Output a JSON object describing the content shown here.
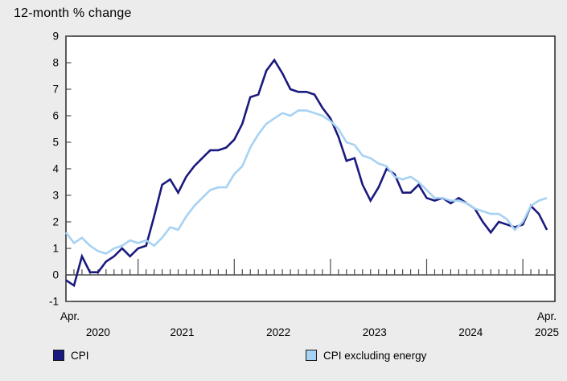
{
  "title": "12-month % change",
  "colors": {
    "background": "#ececec",
    "plot_background": "#ffffff",
    "plot_border": "#262626",
    "axis": "#4c4c4c",
    "cpi_line": "#1a1a7e",
    "cpi_ex_energy_line": "#a6d2f4"
  },
  "legend": {
    "items": [
      {
        "label": "CPI",
        "color": "#1a1a7e"
      },
      {
        "label": "CPI excluding energy",
        "color": "#a6d2f4"
      }
    ]
  },
  "chart_data": {
    "type": "line",
    "title": "12-month % change",
    "x_start_label": "Apr.",
    "x_end_label": "Apr.",
    "year_labels": [
      "2020",
      "2021",
      "2022",
      "2023",
      "2024",
      "2025"
    ],
    "x_range_months": [
      "2020-04",
      "2025-04"
    ],
    "ylim": [
      -1,
      9
    ],
    "yticks": [
      9,
      8,
      7,
      6,
      5,
      4,
      3,
      2,
      1,
      0,
      -1
    ],
    "grid": false,
    "legend_position": "bottom",
    "series": [
      {
        "name": "CPI",
        "color": "#1a1a7e",
        "values": [
          -0.2,
          -0.4,
          0.7,
          0.1,
          0.1,
          0.5,
          0.7,
          1.0,
          0.7,
          1.0,
          1.1,
          2.2,
          3.4,
          3.6,
          3.1,
          3.7,
          4.1,
          4.4,
          4.7,
          4.7,
          4.8,
          5.1,
          5.7,
          6.7,
          6.8,
          7.7,
          8.1,
          7.6,
          7.0,
          6.9,
          6.9,
          6.8,
          6.3,
          5.9,
          5.2,
          4.3,
          4.4,
          3.4,
          2.8,
          3.3,
          4.0,
          3.8,
          3.1,
          3.1,
          3.4,
          2.9,
          2.8,
          2.9,
          2.7,
          2.9,
          2.7,
          2.5,
          2.0,
          1.6,
          2.0,
          1.9,
          1.8,
          1.9,
          2.6,
          2.3,
          1.7
        ]
      },
      {
        "name": "CPI excluding energy",
        "color": "#a6d2f4",
        "values": [
          1.6,
          1.2,
          1.4,
          1.1,
          0.9,
          0.8,
          1.0,
          1.1,
          1.3,
          1.2,
          1.3,
          1.1,
          1.4,
          1.8,
          1.7,
          2.2,
          2.6,
          2.9,
          3.2,
          3.3,
          3.3,
          3.8,
          4.1,
          4.8,
          5.3,
          5.7,
          5.9,
          6.1,
          6.0,
          6.2,
          6.2,
          6.1,
          6.0,
          5.8,
          5.5,
          5.0,
          4.9,
          4.5,
          4.4,
          4.2,
          4.1,
          3.7,
          3.6,
          3.7,
          3.5,
          3.2,
          2.9,
          2.9,
          2.8,
          2.8,
          2.7,
          2.5,
          2.4,
          2.3,
          2.3,
          2.1,
          1.7,
          2.0,
          2.6,
          2.8,
          2.9
        ]
      }
    ]
  }
}
